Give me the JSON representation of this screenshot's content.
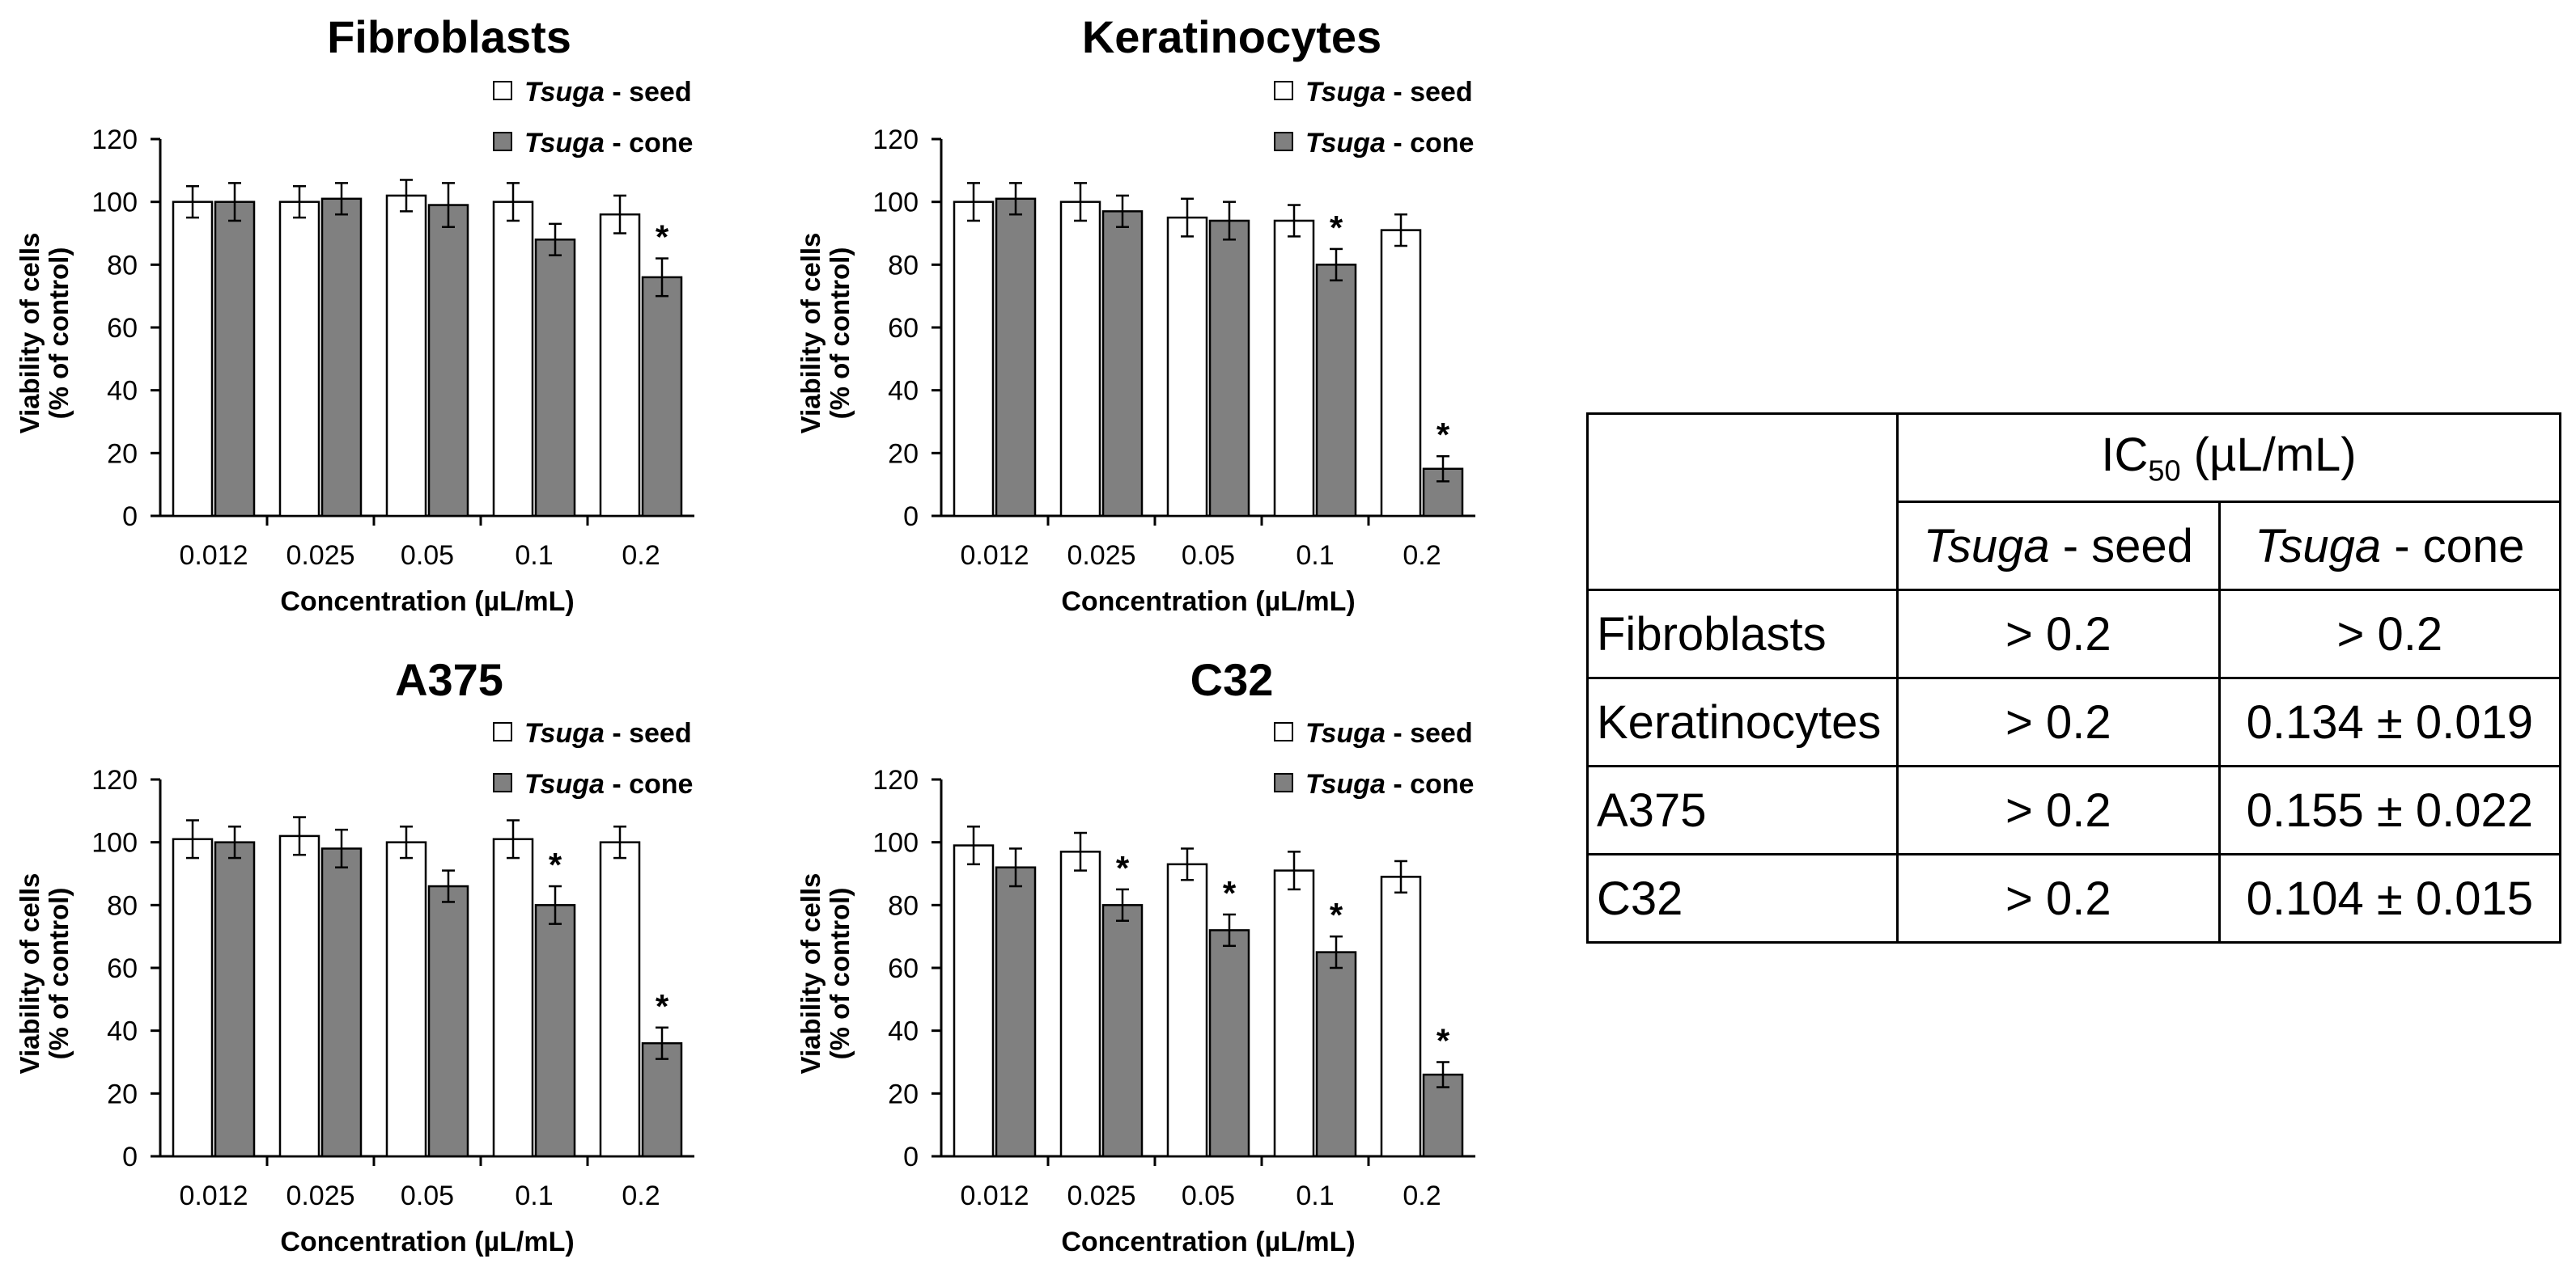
{
  "chart_data": [
    {
      "type": "bar",
      "title": "Fibroblasts",
      "xlabel": "Concentration (µL/mL)",
      "ylabel_line1": "Viability of cells",
      "ylabel_line2": "(% of control)",
      "ylim": [
        0,
        120
      ],
      "yticks": [
        "0",
        "20",
        "40",
        "60",
        "80",
        "100",
        "120"
      ],
      "categories": [
        "0.012",
        "0.025",
        "0.05",
        "0.1",
        "0.2"
      ],
      "legend_position": "top-right",
      "series": [
        {
          "name_italic": "Tsuga",
          "name_rest": " - seed",
          "color": "#ffffff",
          "values": [
            100,
            100,
            102,
            100,
            96
          ],
          "errors": [
            5,
            5,
            5,
            6,
            6
          ],
          "significant": [
            false,
            false,
            false,
            false,
            false
          ]
        },
        {
          "name_italic": "Tsuga",
          "name_rest": " - cone",
          "color": "#808080",
          "values": [
            100,
            101,
            99,
            88,
            76
          ],
          "errors": [
            6,
            5,
            7,
            5,
            6
          ],
          "significant": [
            false,
            false,
            false,
            false,
            true
          ]
        }
      ]
    },
    {
      "type": "bar",
      "title": "Keratinocytes",
      "xlabel": "Concentration (µL/mL)",
      "ylabel_line1": "Viability of cells",
      "ylabel_line2": "(% of control)",
      "ylim": [
        0,
        120
      ],
      "yticks": [
        "0",
        "20",
        "40",
        "60",
        "80",
        "100",
        "120"
      ],
      "categories": [
        "0.012",
        "0.025",
        "0.05",
        "0.1",
        "0.2"
      ],
      "legend_position": "top-right",
      "series": [
        {
          "name_italic": "Tsuga",
          "name_rest": " - seed",
          "color": "#ffffff",
          "values": [
            100,
            100,
            95,
            94,
            91
          ],
          "errors": [
            6,
            6,
            6,
            5,
            5
          ],
          "significant": [
            false,
            false,
            false,
            false,
            false
          ]
        },
        {
          "name_italic": "Tsuga",
          "name_rest": " - cone",
          "color": "#808080",
          "values": [
            101,
            97,
            94,
            80,
            15
          ],
          "errors": [
            5,
            5,
            6,
            5,
            4
          ],
          "significant": [
            false,
            false,
            false,
            true,
            true
          ]
        }
      ]
    },
    {
      "type": "bar",
      "title": "A375",
      "xlabel": "Concentration (µL/mL)",
      "ylabel_line1": "Viability of cells",
      "ylabel_line2": "(% of control)",
      "ylim": [
        0,
        120
      ],
      "yticks": [
        "0",
        "20",
        "40",
        "60",
        "80",
        "100",
        "120"
      ],
      "categories": [
        "0.012",
        "0.025",
        "0.05",
        "0.1",
        "0.2"
      ],
      "legend_position": "top-right",
      "series": [
        {
          "name_italic": "Tsuga",
          "name_rest": " - seed",
          "color": "#ffffff",
          "values": [
            101,
            102,
            100,
            101,
            100
          ],
          "errors": [
            6,
            6,
            5,
            6,
            5
          ],
          "significant": [
            false,
            false,
            false,
            false,
            false
          ]
        },
        {
          "name_italic": "Tsuga",
          "name_rest": " - cone",
          "color": "#808080",
          "values": [
            100,
            98,
            86,
            80,
            36
          ],
          "errors": [
            5,
            6,
            5,
            6,
            5
          ],
          "significant": [
            false,
            false,
            false,
            true,
            true
          ]
        }
      ]
    },
    {
      "type": "bar",
      "title": "C32",
      "xlabel": "Concentration (µL/mL)",
      "ylabel_line1": "Viability of cells",
      "ylabel_line2": "(% of control)",
      "ylim": [
        0,
        120
      ],
      "yticks": [
        "0",
        "20",
        "40",
        "60",
        "80",
        "100",
        "120"
      ],
      "categories": [
        "0.012",
        "0.025",
        "0.05",
        "0.1",
        "0.2"
      ],
      "legend_position": "top-right",
      "series": [
        {
          "name_italic": "Tsuga",
          "name_rest": " - seed",
          "color": "#ffffff",
          "values": [
            99,
            97,
            93,
            91,
            89
          ],
          "errors": [
            6,
            6,
            5,
            6,
            5
          ],
          "significant": [
            false,
            false,
            false,
            false,
            false
          ]
        },
        {
          "name_italic": "Tsuga",
          "name_rest": " - cone",
          "color": "#808080",
          "values": [
            92,
            80,
            72,
            65,
            26
          ],
          "errors": [
            6,
            5,
            5,
            5,
            4
          ],
          "significant": [
            false,
            true,
            true,
            true,
            true
          ]
        }
      ]
    }
  ],
  "significance_marker": "*",
  "ic50_table": {
    "header_prefix": "IC",
    "header_sub": "50",
    "header_suffix": " (µL/mL)",
    "col1_italic": "Tsuga",
    "col1_rest": " - seed",
    "col2_italic": "Tsuga",
    "col2_rest": " - cone",
    "rows": [
      {
        "name": "Fibroblasts",
        "seed": "> 0.2",
        "cone": "> 0.2"
      },
      {
        "name": "Keratinocytes",
        "seed": "> 0.2",
        "cone": "0.134 ± 0.019"
      },
      {
        "name": "A375",
        "seed": "> 0.2",
        "cone": "0.155 ± 0.022"
      },
      {
        "name": "C32",
        "seed": "> 0.2",
        "cone": "0.104 ± 0.015"
      }
    ]
  }
}
